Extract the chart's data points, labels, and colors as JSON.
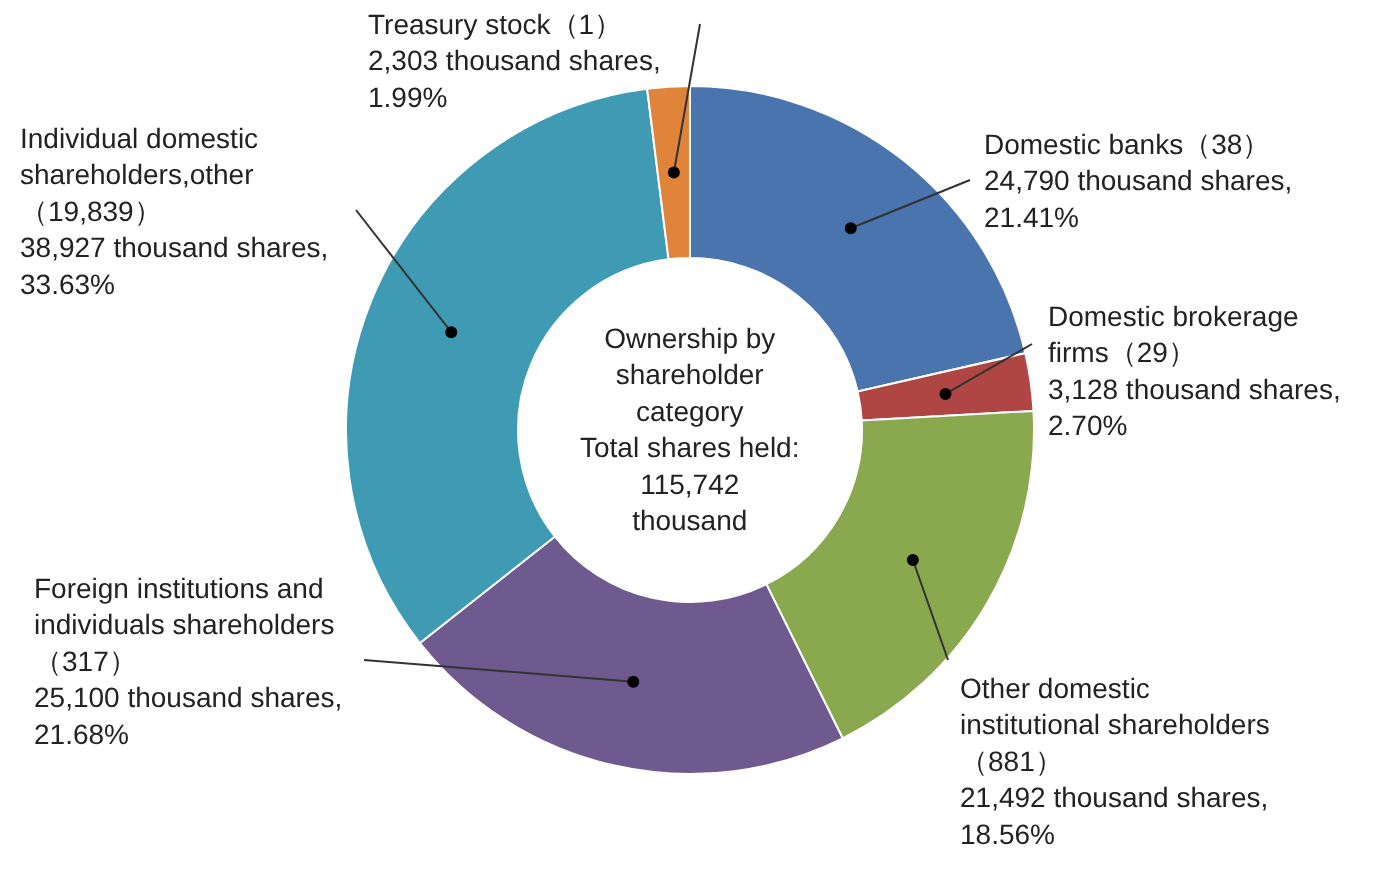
{
  "chart_data": {
    "type": "donut",
    "categories": [
      "Domestic banks（38）",
      "Domestic brokerage\nfirms（29）",
      "Other domestic\ninstitutional shareholders\n（881）",
      "Foreign institutions and\nindividuals shareholders\n（317）",
      "Individual domestic\nshareholders,other\n（19,839）",
      "Treasury stock（1）"
    ],
    "values": [
      21.41,
      2.7,
      18.56,
      21.68,
      33.63,
      1.99
    ],
    "value_labels": [
      "24,790 thousand shares,\n21.41%",
      "3,128 thousand shares,\n2.70%",
      "21,492 thousand shares,\n18.56%",
      "25,100 thousand shares,\n21.68%",
      "38,927 thousand shares,\n33.63%",
      "2,303 thousand shares,\n1.99%"
    ],
    "colors": [
      "#4a74ae",
      "#b04643",
      "#8aa84e",
      "#6f5a90",
      "#3f9bb3",
      "#e0843a"
    ],
    "annotations": [
      "Ownership by\nshareholder\ncategory\nTotal shares held:\n115,742\nthousand"
    ],
    "legend": false
  }
}
